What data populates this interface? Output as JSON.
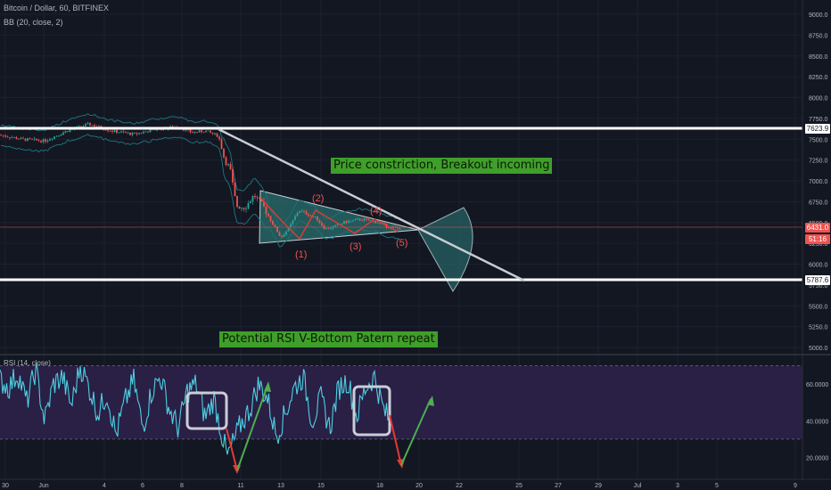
{
  "legend": {
    "symbol": "Bitcoin / Dollar, 60, BITFINEX",
    "bb": "BB (20, close, 2)",
    "rsi": "RSI (14, close)"
  },
  "annotations": {
    "constriction": "Price constriction, Breakout incoming",
    "rsi_pattern": "Potential RSI V-Bottom Patern repeat",
    "wave_labels": [
      "(1)",
      "(2)",
      "(3)",
      "(4)",
      "(5)"
    ]
  },
  "price_tags": {
    "upper_level": "7623.9",
    "current_price": "6431.0",
    "countdown": "51:16",
    "lower_level": "5787.6"
  },
  "colors": {
    "background": "#131722",
    "candle_up": "#26a69a",
    "candle_down": "#ef5350",
    "bands": "#1f6f78",
    "rsi_line": "#4dd0e1",
    "rsi_band": "#2a1f45",
    "note_bg": "#3f9f2a",
    "arrow_up": "#4caf50",
    "arrow_down": "#e53935",
    "triangle": "#2c7c7a"
  },
  "chart_data": [
    {
      "type": "candlestick",
      "title": "Bitcoin / Dollar, 60, BITFINEX",
      "ylim": [
        4850,
        9150
      ],
      "y_ticks": [
        "9000.0",
        "8750.0",
        "8500.0",
        "8250.0",
        "8000.0",
        "7750.0",
        "7500.0",
        "7250.0",
        "7000.0",
        "6750.0",
        "6500.0",
        "6250.0",
        "6000.0",
        "5750.0",
        "5500.0",
        "5250.0",
        "5000.0"
      ],
      "x_labels": [
        "30",
        "Jun",
        "4",
        "6",
        "8",
        "11",
        "13",
        "15",
        "18",
        "20",
        "22",
        "25",
        "27",
        "29",
        "Jul",
        "3",
        "5",
        "9"
      ],
      "horizontal_levels": [
        7623.9,
        5787.6
      ],
      "current_price": 6431.0,
      "price_path_x": [
        0,
        25,
        50,
        75,
        100,
        125,
        150,
        175,
        200,
        215,
        230,
        245,
        252,
        258,
        265,
        275,
        285,
        295,
        305,
        315,
        325,
        335,
        345,
        355,
        365,
        375,
        385,
        395,
        405,
        415,
        425,
        435,
        445,
        450
      ],
      "price_path_y": [
        7550,
        7500,
        7480,
        7600,
        7680,
        7600,
        7560,
        7620,
        7650,
        7580,
        7600,
        7540,
        7250,
        7150,
        6700,
        6680,
        6830,
        6700,
        6500,
        6320,
        6450,
        6650,
        6600,
        6550,
        6420,
        6450,
        6500,
        6520,
        6540,
        6520,
        6500,
        6450,
        6430,
        6431
      ]
    },
    {
      "type": "line",
      "title": "RSI (14, close)",
      "ylim": [
        12,
        75
      ],
      "y_ticks": [
        "60.0000",
        "40.0000",
        "20.0000"
      ],
      "band": [
        30,
        70
      ],
      "x": [
        0,
        10,
        20,
        30,
        40,
        50,
        60,
        70,
        80,
        90,
        100,
        110,
        120,
        130,
        140,
        150,
        160,
        170,
        180,
        190,
        200,
        210,
        220,
        230,
        240,
        250,
        255,
        260,
        270,
        280,
        290,
        300,
        310,
        320,
        330,
        340,
        350,
        360,
        370,
        380,
        390,
        400,
        410,
        420,
        430,
        435
      ],
      "values": [
        62,
        58,
        66,
        50,
        68,
        40,
        60,
        64,
        48,
        70,
        58,
        44,
        55,
        32,
        50,
        62,
        36,
        56,
        64,
        46,
        36,
        56,
        60,
        42,
        52,
        30,
        20,
        26,
        38,
        46,
        60,
        52,
        32,
        44,
        58,
        64,
        40,
        52,
        36,
        58,
        62,
        42,
        58,
        64,
        46,
        42
      ]
    }
  ]
}
